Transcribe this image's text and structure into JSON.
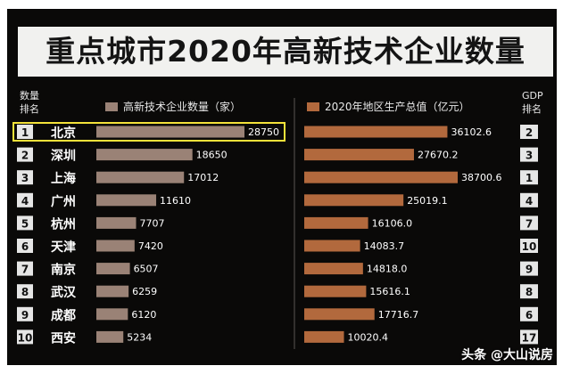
{
  "title": "重点城市2020年高新技术企业数量",
  "headers": {
    "rank_left_line1": "数量",
    "rank_left_line2": "排名",
    "rank_right_line1": "GDP",
    "rank_right_line2": "排名"
  },
  "colors": {
    "enterprise_bar": "#9a8276",
    "gdp_bar": "#b2693d",
    "rank_box": "#e6e6e6",
    "highlight": "#f4e23a"
  },
  "watermark": "头条 @大山说房",
  "chart_data": {
    "type": "bar",
    "title": "重点城市2020年高新技术企业数量",
    "categories": [
      "北京",
      "深圳",
      "上海",
      "广州",
      "杭州",
      "天津",
      "南京",
      "武汉",
      "成都",
      "西安"
    ],
    "count_ranks": [
      "1",
      "2",
      "3",
      "4",
      "5",
      "6",
      "7",
      "8",
      "9",
      "10"
    ],
    "gdp_ranks": [
      "2",
      "3",
      "1",
      "4",
      "7",
      "10",
      "9",
      "8",
      "6",
      "17"
    ],
    "series": [
      {
        "name": "高新技术企业数量（家）",
        "values": [
          28750,
          18650,
          17012,
          11610,
          7707,
          7420,
          6507,
          6259,
          6120,
          5234
        ],
        "labels": [
          "28750",
          "18650",
          "17012",
          "11610",
          "7707",
          "7420",
          "6507",
          "6259",
          "6120",
          "5234"
        ]
      },
      {
        "name": "2020年地区生产总值（亿元）",
        "values": [
          36102.6,
          27670.2,
          38700.6,
          25019.1,
          16106.0,
          14083.7,
          14818.0,
          15616.1,
          17716.7,
          10020.4
        ],
        "labels": [
          "36102.6",
          "27670.2",
          "38700.6",
          "25019.1",
          "16106.0",
          "14083.7",
          "14818.0",
          "15616.1",
          "17716.7",
          "10020.4"
        ]
      }
    ],
    "legend_position": "top",
    "grid": false
  }
}
